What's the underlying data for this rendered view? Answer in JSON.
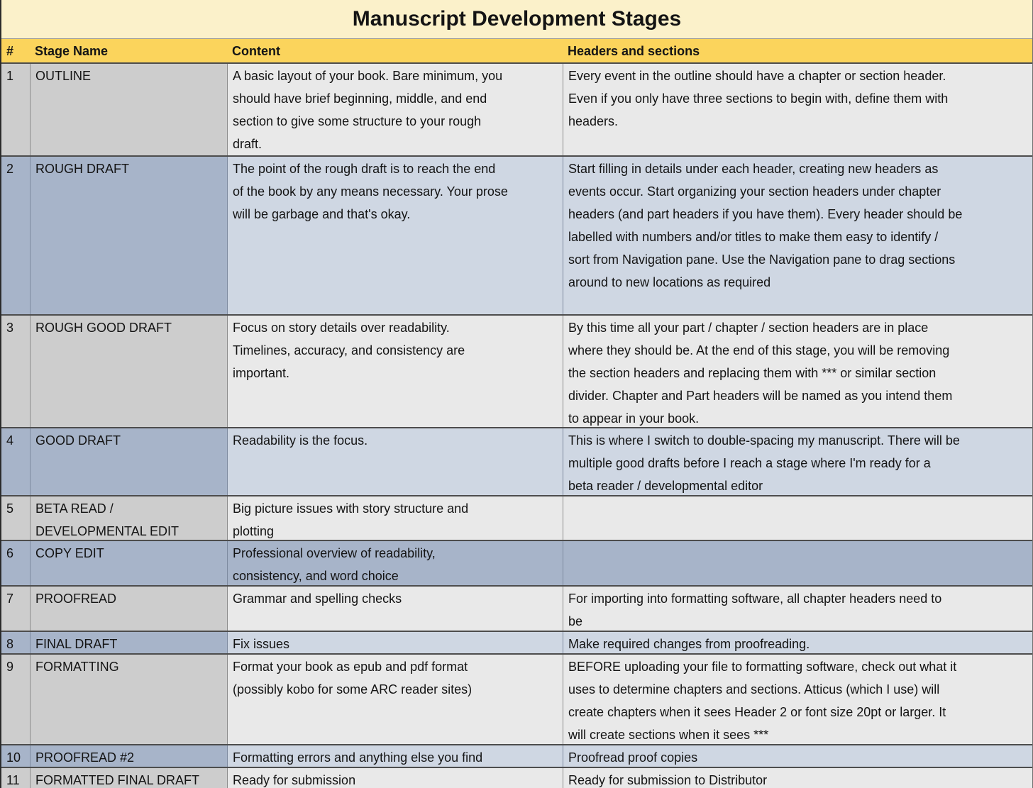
{
  "title": "Manuscript Development Stages",
  "columns": {
    "num": "#",
    "stage": "Stage Name",
    "content": "Content",
    "headers": "Headers and sections"
  },
  "rows": [
    {
      "num": "1",
      "stage": "OUTLINE",
      "content": "A basic layout of your book. Bare minimum, you\nshould have brief beginning, middle, and end\nsection to give some structure to your rough\ndraft.",
      "headers": "Every event in the outline should have a chapter or section header.\nEven if you only have three sections to begin with, define them with\nheaders."
    },
    {
      "num": "2",
      "stage": "ROUGH DRAFT",
      "content": "The point of the rough draft is to reach the end\nof the book by any means necessary. Your prose\nwill be garbage and that's okay.",
      "headers": "Start filling in details under each header, creating new headers as\nevents occur. Start organizing your section headers under chapter\nheaders (and part headers if you have them). Every header should be\nlabelled with numbers and/or titles to make them easy to identify /\nsort from Navigation pane. Use the Navigation pane to drag sections\naround to new locations as required"
    },
    {
      "num": "3",
      "stage": "ROUGH GOOD DRAFT",
      "content": "Focus on story details over readability.\nTimelines, accuracy, and consistency are\nimportant.",
      "headers": "By this time all your part / chapter / section headers are in place\nwhere they should be.  At the end of this stage, you will be removing\nthe section headers and replacing them with *** or similar section\ndivider. Chapter and Part headers will be named as you intend them\nto appear in your book."
    },
    {
      "num": "4",
      "stage": "GOOD DRAFT",
      "content": "Readability is the focus.",
      "headers": "This is where I switch to double-spacing my manuscript. There will be\nmultiple good drafts before I reach a stage where I'm ready for a\nbeta reader / developmental editor"
    },
    {
      "num": "5",
      "stage": "BETA READ /\nDEVELOPMENTAL EDIT",
      "content": "Big picture issues with story structure and\nplotting",
      "headers": ""
    },
    {
      "num": "6",
      "stage": "COPY EDIT",
      "content": "Professional overview of readability,\nconsistency, and word choice",
      "headers": ""
    },
    {
      "num": "7",
      "stage": "PROOFREAD",
      "content": "Grammar and spelling checks",
      "headers": "For importing into formatting software, all chapter headers need to\nbe"
    },
    {
      "num": "8",
      "stage": "FINAL DRAFT",
      "content": "Fix issues",
      "headers": "Make required changes from proofreading."
    },
    {
      "num": "9",
      "stage": "FORMATTING",
      "content": "Format your book as epub and pdf format\n(possibly kobo for some ARC reader sites)",
      "headers": "BEFORE uploading your file to formatting software, check out what it\nuses to determine chapters and sections.  Atticus (which I use) will\ncreate chapters when it sees Header 2 or font size 20pt or larger. It\nwill create sections when it sees ***"
    },
    {
      "num": "10",
      "stage": "PROOFREAD #2",
      "content": "Formatting errors and anything else you find",
      "headers": "Proofread proof copies"
    },
    {
      "num": "11",
      "stage": "FORMATTED FINAL DRAFT",
      "content": "Ready for submission",
      "headers": "Ready for submission to Distributor"
    }
  ],
  "colors": {
    "title_bg": "#FBF1CA",
    "header_bg": "#FBD45C",
    "gray_label_bg": "#CDCDCD",
    "gray_body_bg": "#E9E9E9",
    "blue_label_bg": "#A7B4C9",
    "blue_body_bg": "#CFD7E3",
    "text": "#141414",
    "border_dark": "#4D4D4D"
  }
}
